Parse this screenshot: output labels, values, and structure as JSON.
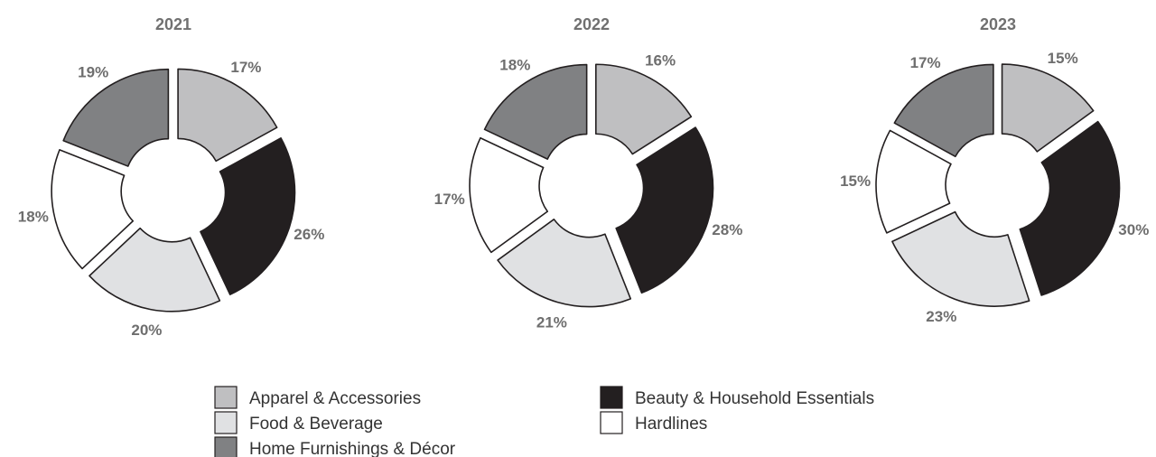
{
  "colors": {
    "Apparel & Accessories": "#bfbfc1",
    "Beauty & Household Essentials": "#231f20",
    "Food & Beverage": "#e0e1e3",
    "Hardlines": "#ffffff",
    "Home Furnishings & Décor": "#808183"
  },
  "chart_data": [
    {
      "type": "pie",
      "title": "2021",
      "series": [
        {
          "name": "Apparel & Accessories",
          "value": 17,
          "label": "17%"
        },
        {
          "name": "Beauty & Household Essentials",
          "value": 26,
          "label": "26%"
        },
        {
          "name": "Food & Beverage",
          "value": 20,
          "label": "20%"
        },
        {
          "name": "Hardlines",
          "value": 18,
          "label": "18%"
        },
        {
          "name": "Home Furnishings & Décor",
          "value": 19,
          "label": "19%"
        }
      ]
    },
    {
      "type": "pie",
      "title": "2022",
      "series": [
        {
          "name": "Apparel & Accessories",
          "value": 16,
          "label": "16%"
        },
        {
          "name": "Beauty & Household Essentials",
          "value": 28,
          "label": "28%"
        },
        {
          "name": "Food & Beverage",
          "value": 21,
          "label": "21%"
        },
        {
          "name": "Hardlines",
          "value": 17,
          "label": "17%"
        },
        {
          "name": "Home Furnishings & Décor",
          "value": 18,
          "label": "18%"
        }
      ]
    },
    {
      "type": "pie",
      "title": "2023",
      "series": [
        {
          "name": "Apparel & Accessories",
          "value": 15,
          "label": "15%"
        },
        {
          "name": "Beauty & Household Essentials",
          "value": 30,
          "label": "30%"
        },
        {
          "name": "Food & Beverage",
          "value": 23,
          "label": "23%"
        },
        {
          "name": "Hardlines",
          "value": 15,
          "label": "15%"
        },
        {
          "name": "Home Furnishings & Décor",
          "value": 17,
          "label": "17%"
        }
      ]
    }
  ],
  "legend": {
    "items": [
      "Apparel & Accessories",
      "Beauty & Household Essentials",
      "Food & Beverage",
      "Hardlines",
      "Home Furnishings & Décor"
    ]
  }
}
